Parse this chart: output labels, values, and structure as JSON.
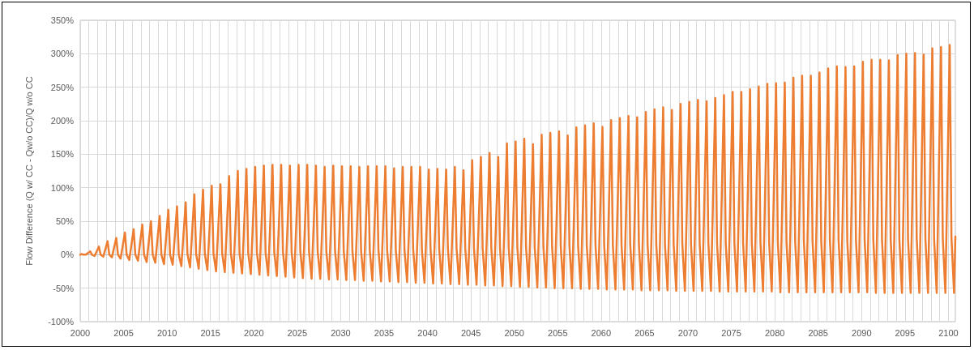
{
  "chart_data": {
    "type": "line",
    "ylabel": "Flow Difference (Q w/ CC - Qw/o CC)/Q w/o CC",
    "xlim": [
      2000,
      2100.8
    ],
    "xticks": [
      2000,
      {
        "value": 2001,
        "label": null
      },
      {
        "value": 2002,
        "label": null
      },
      {
        "value": 2003,
        "label": null
      },
      {
        "value": 2004,
        "label": null
      },
      2005,
      {
        "value": 2006,
        "label": null
      },
      {
        "value": 2007,
        "label": null
      },
      {
        "value": 2008,
        "label": null
      },
      {
        "value": 2009,
        "label": null
      },
      2010,
      {
        "value": 2011,
        "label": null
      },
      {
        "value": 2012,
        "label": null
      },
      {
        "value": 2013,
        "label": null
      },
      {
        "value": 2014,
        "label": null
      },
      2015,
      {
        "value": 2016,
        "label": null
      },
      {
        "value": 2017,
        "label": null
      },
      {
        "value": 2018,
        "label": null
      },
      {
        "value": 2019,
        "label": null
      },
      2020,
      {
        "value": 2021,
        "label": null
      },
      {
        "value": 2022,
        "label": null
      },
      {
        "value": 2023,
        "label": null
      },
      {
        "value": 2024,
        "label": null
      },
      2025,
      {
        "value": 2026,
        "label": null
      },
      {
        "value": 2027,
        "label": null
      },
      {
        "value": 2028,
        "label": null
      },
      {
        "value": 2029,
        "label": null
      },
      2030,
      {
        "value": 2031,
        "label": null
      },
      {
        "value": 2032,
        "label": null
      },
      {
        "value": 2033,
        "label": null
      },
      {
        "value": 2034,
        "label": null
      },
      2035,
      {
        "value": 2036,
        "label": null
      },
      {
        "value": 2037,
        "label": null
      },
      {
        "value": 2038,
        "label": null
      },
      {
        "value": 2039,
        "label": null
      },
      2040,
      {
        "value": 2041,
        "label": null
      },
      {
        "value": 2042,
        "label": null
      },
      {
        "value": 2043,
        "label": null
      },
      {
        "value": 2044,
        "label": null
      },
      2045,
      {
        "value": 2046,
        "label": null
      },
      {
        "value": 2047,
        "label": null
      },
      {
        "value": 2048,
        "label": null
      },
      {
        "value": 2049,
        "label": null
      },
      2050,
      {
        "value": 2051,
        "label": null
      },
      {
        "value": 2052,
        "label": null
      },
      {
        "value": 2053,
        "label": null
      },
      {
        "value": 2054,
        "label": null
      },
      2055,
      {
        "value": 2056,
        "label": null
      },
      {
        "value": 2057,
        "label": null
      },
      {
        "value": 2058,
        "label": null
      },
      {
        "value": 2059,
        "label": null
      },
      2060,
      {
        "value": 2061,
        "label": null
      },
      {
        "value": 2062,
        "label": null
      },
      {
        "value": 2063,
        "label": null
      },
      {
        "value": 2064,
        "label": null
      },
      2065,
      {
        "value": 2066,
        "label": null
      },
      {
        "value": 2067,
        "label": null
      },
      {
        "value": 2068,
        "label": null
      },
      {
        "value": 2069,
        "label": null
      },
      2070,
      {
        "value": 2071,
        "label": null
      },
      {
        "value": 2072,
        "label": null
      },
      {
        "value": 2073,
        "label": null
      },
      {
        "value": 2074,
        "label": null
      },
      2075,
      {
        "value": 2076,
        "label": null
      },
      {
        "value": 2077,
        "label": null
      },
      {
        "value": 2078,
        "label": null
      },
      {
        "value": 2079,
        "label": null
      },
      2080,
      {
        "value": 2081,
        "label": null
      },
      {
        "value": 2082,
        "label": null
      },
      {
        "value": 2083,
        "label": null
      },
      {
        "value": 2084,
        "label": null
      },
      2085,
      {
        "value": 2086,
        "label": null
      },
      {
        "value": 2087,
        "label": null
      },
      {
        "value": 2088,
        "label": null
      },
      {
        "value": 2089,
        "label": null
      },
      2090,
      {
        "value": 2091,
        "label": null
      },
      {
        "value": 2092,
        "label": null
      },
      {
        "value": 2093,
        "label": null
      },
      {
        "value": 2094,
        "label": null
      },
      2095,
      {
        "value": 2096,
        "label": null
      },
      {
        "value": 2097,
        "label": null
      },
      {
        "value": 2098,
        "label": null
      },
      {
        "value": 2099,
        "label": null
      },
      2100
    ],
    "ylim": [
      -100,
      350
    ],
    "yticks": [
      {
        "value": -100,
        "label": "-100%"
      },
      {
        "value": -50,
        "label": "-50%"
      },
      {
        "value": 0,
        "label": "0%"
      },
      {
        "value": 50,
        "label": "50%"
      },
      {
        "value": 100,
        "label": "100%"
      },
      {
        "value": 150,
        "label": "150%"
      },
      {
        "value": 200,
        "label": "200%"
      },
      {
        "value": 250,
        "label": "250%"
      },
      {
        "value": 300,
        "label": "300%"
      },
      {
        "value": 350,
        "label": "350%"
      }
    ],
    "grid": true,
    "marker": "none",
    "line_style": "solid",
    "series": [
      {
        "color": "#ed7d31",
        "x": [
          2000,
          2000.15,
          2000.35,
          2000.65,
          2001.15,
          2001.35,
          2001.65,
          2002.15,
          2002.35,
          2002.65,
          2003.15,
          2003.35,
          2003.65,
          2004.15,
          2004.35,
          2004.65,
          2005.15,
          2005.35,
          2005.65,
          2006.15,
          2006.35,
          2006.65,
          2007.15,
          2007.35,
          2007.65,
          2008.15,
          2008.35,
          2008.65,
          2009.15,
          2009.35,
          2009.65,
          2010.15,
          2010.35,
          2010.65,
          2011.15,
          2011.35,
          2011.65,
          2012.15,
          2012.35,
          2012.65,
          2013.15,
          2013.35,
          2013.65,
          2014.15,
          2014.35,
          2014.65,
          2015.15,
          2015.35,
          2015.65,
          2016.15,
          2016.35,
          2016.65,
          2017.15,
          2017.35,
          2017.65,
          2018.15,
          2018.35,
          2018.65,
          2019.15,
          2019.35,
          2019.65,
          2020.15,
          2020.35,
          2020.65,
          2021.15,
          2021.35,
          2021.65,
          2022.15,
          2022.35,
          2022.65,
          2023.15,
          2023.35,
          2023.65,
          2024.15,
          2024.35,
          2024.65,
          2025.15,
          2025.35,
          2025.65,
          2026.15,
          2026.35,
          2026.65,
          2027.15,
          2027.35,
          2027.65,
          2028.15,
          2028.35,
          2028.65,
          2029.15,
          2029.35,
          2029.65,
          2030.15,
          2030.35,
          2030.65,
          2031.15,
          2031.35,
          2031.65,
          2032.15,
          2032.35,
          2032.65,
          2033.15,
          2033.35,
          2033.65,
          2034.15,
          2034.35,
          2034.65,
          2035.15,
          2035.35,
          2035.65,
          2036.15,
          2036.35,
          2036.65,
          2037.15,
          2037.35,
          2037.65,
          2038.15,
          2038.35,
          2038.65,
          2039.15,
          2039.35,
          2039.65,
          2040.15,
          2040.35,
          2040.65,
          2041.15,
          2041.35,
          2041.65,
          2042.15,
          2042.35,
          2042.65,
          2043.15,
          2043.35,
          2043.65,
          2044.15,
          2044.35,
          2044.65,
          2045.15,
          2045.35,
          2045.65,
          2046.15,
          2046.35,
          2046.65,
          2047.15,
          2047.35,
          2047.65,
          2048.15,
          2048.35,
          2048.65,
          2049.15,
          2049.35,
          2049.65,
          2050.15,
          2050.35,
          2050.65,
          2051.15,
          2051.35,
          2051.65,
          2052.15,
          2052.35,
          2052.65,
          2053.15,
          2053.35,
          2053.65,
          2054.15,
          2054.35,
          2054.65,
          2055.15,
          2055.35,
          2055.65,
          2056.15,
          2056.35,
          2056.65,
          2057.15,
          2057.35,
          2057.65,
          2058.15,
          2058.35,
          2058.65,
          2059.15,
          2059.35,
          2059.65,
          2060.15,
          2060.35,
          2060.65,
          2061.15,
          2061.35,
          2061.65,
          2062.15,
          2062.35,
          2062.65,
          2063.15,
          2063.35,
          2063.65,
          2064.15,
          2064.35,
          2064.65,
          2065.15,
          2065.35,
          2065.65,
          2066.15,
          2066.35,
          2066.65,
          2067.15,
          2067.35,
          2067.65,
          2068.15,
          2068.35,
          2068.65,
          2069.15,
          2069.35,
          2069.65,
          2070.15,
          2070.35,
          2070.65,
          2071.15,
          2071.35,
          2071.65,
          2072.15,
          2072.35,
          2072.65,
          2073.15,
          2073.35,
          2073.65,
          2074.15,
          2074.35,
          2074.65,
          2075.15,
          2075.35,
          2075.65,
          2076.15,
          2076.35,
          2076.65,
          2077.15,
          2077.35,
          2077.65,
          2078.15,
          2078.35,
          2078.65,
          2079.15,
          2079.35,
          2079.65,
          2080.15,
          2080.35,
          2080.65,
          2081.15,
          2081.35,
          2081.65,
          2082.15,
          2082.35,
          2082.65,
          2083.15,
          2083.35,
          2083.65,
          2084.15,
          2084.35,
          2084.65,
          2085.15,
          2085.35,
          2085.65,
          2086.15,
          2086.35,
          2086.65,
          2087.15,
          2087.35,
          2087.65,
          2088.15,
          2088.35,
          2088.65,
          2089.15,
          2089.35,
          2089.65,
          2090.15,
          2090.35,
          2090.65,
          2091.15,
          2091.35,
          2091.65,
          2092.15,
          2092.35,
          2092.65,
          2093.15,
          2093.35,
          2093.65,
          2094.15,
          2094.35,
          2094.65,
          2095.15,
          2095.35,
          2095.65,
          2096.15,
          2096.35,
          2096.65,
          2097.15,
          2097.35,
          2097.65,
          2098.15,
          2098.35,
          2098.65,
          2099.15,
          2099.35,
          2099.65,
          2100.15,
          2100.35,
          2100.65,
          2100.8
        ],
        "values": [
          0,
          1,
          0,
          0,
          5,
          0,
          -2,
          12,
          0,
          -3,
          20,
          0,
          -4,
          25,
          0,
          -6,
          33,
          0,
          -8,
          38,
          0,
          -9,
          45,
          0,
          -11,
          50,
          0,
          -12,
          58,
          0,
          -14,
          67,
          0,
          -15,
          72,
          0,
          -17,
          78,
          1,
          -19,
          90,
          1,
          -21,
          97,
          1,
          -23,
          103,
          2,
          -25,
          105,
          2,
          -26,
          117,
          2,
          -27,
          125,
          2,
          -28,
          128,
          3,
          -29,
          131,
          3,
          -30,
          133,
          3,
          -31,
          134,
          4,
          -32,
          134,
          4,
          -33,
          133,
          4,
          -34,
          134,
          5,
          -35,
          134,
          5,
          -36,
          133,
          5,
          -36,
          131,
          5,
          -37,
          133,
          6,
          -37,
          132,
          6,
          -38,
          132,
          6,
          -38,
          131,
          6,
          -39,
          132,
          7,
          -39,
          132,
          7,
          -40,
          132,
          7,
          -40,
          129,
          7,
          -41,
          131,
          7,
          -41,
          131,
          8,
          -42,
          131,
          8,
          -42,
          127,
          8,
          -43,
          128,
          8,
          -43,
          127,
          9,
          -44,
          131,
          9,
          -44,
          126,
          9,
          -45,
          141,
          10,
          -45,
          146,
          10,
          -46,
          152,
          10,
          -46,
          146,
          10,
          -47,
          166,
          11,
          -47,
          169,
          11,
          -48,
          173,
          11,
          -48,
          165,
          11,
          -49,
          179,
          12,
          -49,
          182,
          12,
          -50,
          184,
          12,
          -50,
          178,
          13,
          -50,
          190,
          13,
          -51,
          193,
          13,
          -51,
          196,
          14,
          -51,
          191,
          14,
          -52,
          201,
          14,
          -52,
          204,
          14,
          -52,
          207,
          15,
          -52,
          205,
          15,
          -53,
          213,
          15,
          -53,
          217,
          15,
          -53,
          220,
          15,
          -53,
          216,
          16,
          -54,
          225,
          16,
          -54,
          228,
          16,
          -54,
          231,
          16,
          -54,
          229,
          17,
          -54,
          234,
          17,
          -55,
          238,
          17,
          -55,
          243,
          17,
          -55,
          243,
          18,
          -55,
          247,
          18,
          -55,
          251,
          18,
          -55,
          255,
          18,
          -55,
          256,
          19,
          -56,
          257,
          19,
          -56,
          264,
          19,
          -56,
          267,
          20,
          -56,
          267,
          20,
          -56,
          272,
          20,
          -56,
          278,
          21,
          -56,
          281,
          21,
          -56,
          280,
          21,
          -56,
          281,
          22,
          -56,
          288,
          22,
          -56,
          291,
          22,
          -57,
          291,
          22,
          -57,
          290,
          23,
          -57,
          298,
          23,
          -57,
          300,
          23,
          -57,
          301,
          24,
          -57,
          299,
          24,
          -57,
          308,
          24,
          -57,
          310,
          25,
          -57,
          313,
          25,
          -57,
          27
        ]
      }
    ]
  }
}
